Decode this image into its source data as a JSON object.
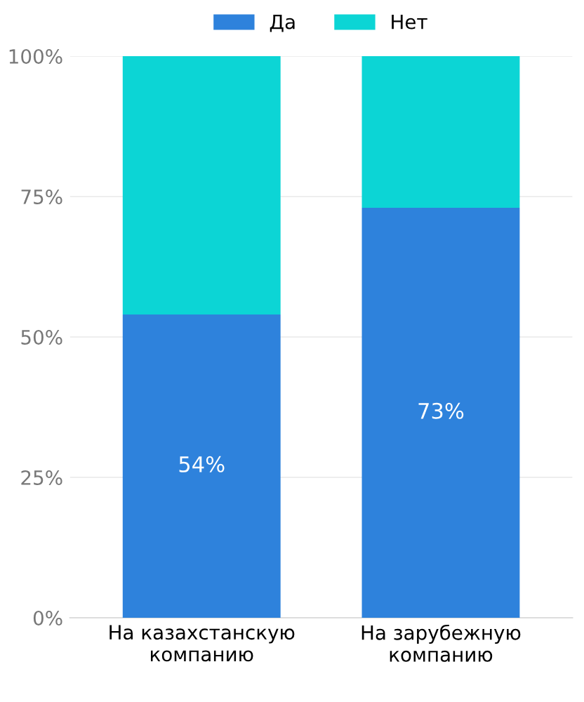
{
  "chart_data": {
    "type": "bar",
    "stacked": true,
    "categories": [
      "На казахстанскую компанию",
      "На зарубежную компанию"
    ],
    "series": [
      {
        "name": "Да",
        "color": "#2e82dc",
        "values": [
          54,
          73
        ],
        "value_labels": [
          "54%",
          "73%"
        ]
      },
      {
        "name": "Нет",
        "color": "#0cd5d5",
        "values": [
          46,
          27
        ]
      }
    ],
    "ylim": [
      0,
      100
    ],
    "yticks": [
      {
        "value": 0,
        "label": "0%"
      },
      {
        "value": 25,
        "label": "25%"
      },
      {
        "value": 50,
        "label": "50%"
      },
      {
        "value": 75,
        "label": "75%"
      },
      {
        "value": 100,
        "label": "100%"
      }
    ],
    "grid": "y",
    "legend": "top"
  }
}
